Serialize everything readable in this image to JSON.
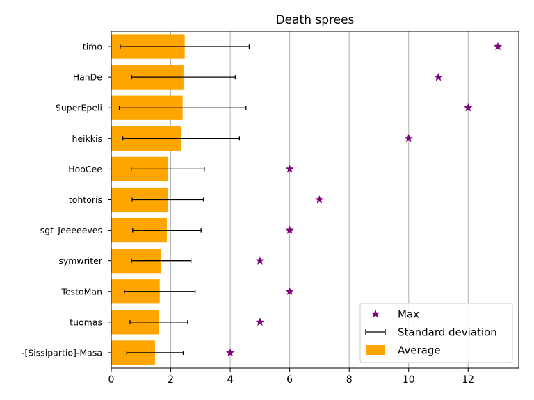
{
  "chart_data": {
    "type": "bar",
    "orientation": "horizontal",
    "title": "Death sprees",
    "xlabel": "",
    "ylabel": "",
    "xlim": [
      0,
      13.7
    ],
    "x_ticks": [
      0,
      2,
      4,
      6,
      8,
      10,
      12
    ],
    "grid": "vertical",
    "legend_position": "lower-right",
    "categories": [
      "timo",
      "HanDe",
      "SuperEpeli",
      "heikkis",
      "HooCee",
      "tohtoris",
      "sgt_Jeeeeeves",
      "symwriter",
      "TestoMan",
      "tuomas",
      "-[Sissipartio]-Masa"
    ],
    "series": [
      {
        "name": "Average",
        "kind": "bar",
        "color": "#FFA500",
        "values": [
          2.47,
          2.43,
          2.4,
          2.35,
          1.9,
          1.9,
          1.87,
          1.68,
          1.63,
          1.6,
          1.47
        ]
      },
      {
        "name": "Standard deviation",
        "kind": "errorbar",
        "color": "#000000",
        "values": [
          2.17,
          1.74,
          2.13,
          1.96,
          1.23,
          1.2,
          1.15,
          1.0,
          1.19,
          0.97,
          0.95
        ]
      },
      {
        "name": "Max",
        "kind": "marker",
        "color": "#800080",
        "marker": "star",
        "values": [
          13,
          11,
          12,
          10,
          6,
          7,
          6,
          5,
          6,
          5,
          4
        ]
      }
    ]
  }
}
